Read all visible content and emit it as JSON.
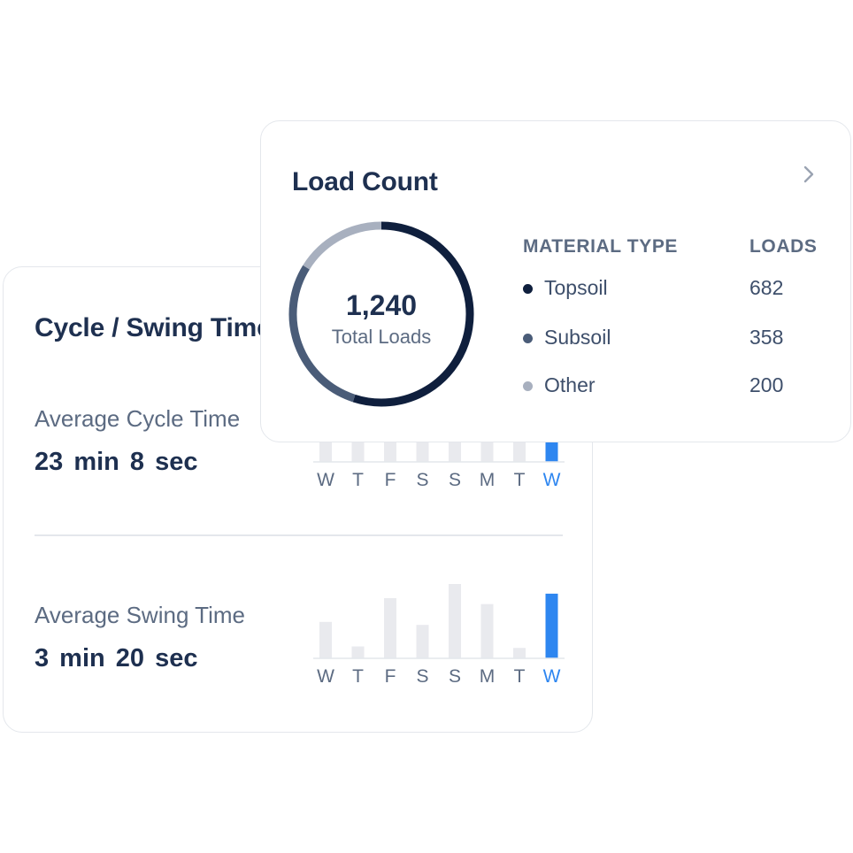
{
  "cycle_card": {
    "title": "Cycle / Swing Time",
    "cycle": {
      "label": "Average Cycle Time",
      "value": "23 min  8 sec"
    },
    "swing": {
      "label": "Average Swing Time",
      "value": "3 min  20 sec"
    }
  },
  "load_card": {
    "title": "Load Count",
    "chevron_icon": "chevron-right-icon",
    "total": "1,240",
    "total_label": "Total Loads",
    "column_material": "MATERIAL TYPE",
    "column_loads": "LOADS",
    "materials": [
      {
        "name": "Topsoil",
        "loads": "682",
        "color": "#0f1f3d"
      },
      {
        "name": "Subsoil",
        "loads": "358",
        "color": "#4a5c78"
      },
      {
        "name": "Other",
        "loads": "200",
        "color": "#a8b0bf"
      }
    ]
  },
  "chart_data": [
    {
      "type": "bar",
      "categories": [
        "W",
        "T",
        "F",
        "S",
        "S",
        "M",
        "T",
        "W"
      ],
      "values": [
        55,
        38,
        58,
        58,
        52,
        60,
        34,
        100
      ],
      "highlight_index": 7,
      "colors": {
        "bar": "#e9eaee",
        "highlight": "#2e86f0"
      }
    },
    {
      "type": "bar",
      "categories": [
        "W",
        "T",
        "F",
        "S",
        "S",
        "M",
        "T",
        "W"
      ],
      "values": [
        49,
        16,
        81,
        45,
        100,
        73,
        14,
        87
      ],
      "highlight_index": 7,
      "colors": {
        "bar": "#e9eaee",
        "highlight": "#2e86f0"
      }
    },
    {
      "type": "pie",
      "categories": [
        "Topsoil",
        "Subsoil",
        "Other"
      ],
      "values": [
        682,
        358,
        200
      ],
      "colors": [
        "#0f1f3d",
        "#4a5c78",
        "#a8b0bf"
      ]
    }
  ]
}
